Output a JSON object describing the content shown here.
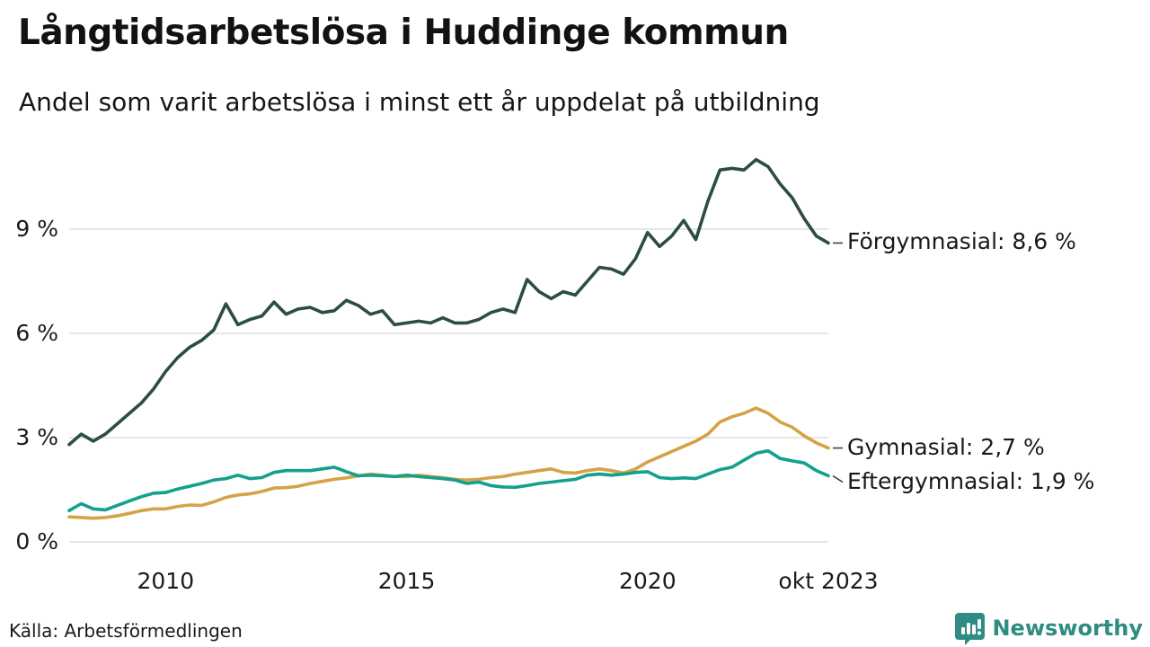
{
  "header": {
    "title": "Långtidsarbetslösa i Huddinge kommun",
    "subtitle": "Andel som varit arbetslösa i minst ett år uppdelat på utbildning"
  },
  "footer": {
    "source": "Källa: Arbetsförmedlingen",
    "brand": "Newsworthy",
    "brand_color": "#2e8c83"
  },
  "chart_data": {
    "type": "line",
    "title": "Långtidsarbetslösa i Huddinge kommun",
    "subtitle": "Andel som varit arbetslösa i minst ett år uppdelat på utbildning",
    "x_unit": "decimal_year_quarterly",
    "x_range_note": "jan 2008 till okt 2023",
    "grid": "horizontal",
    "legend_position": "right-end-labels",
    "ylim": [
      0,
      11.5
    ],
    "y_ticks": [
      {
        "value": 0,
        "label": "0 %"
      },
      {
        "value": 3,
        "label": "3 %"
      },
      {
        "value": 6,
        "label": "6 %"
      },
      {
        "value": 9,
        "label": "9 %"
      }
    ],
    "x_ticks": [
      {
        "value": 2010,
        "label": "2010"
      },
      {
        "value": 2015,
        "label": "2015"
      },
      {
        "value": 2020,
        "label": "2020"
      },
      {
        "value": 2023.75,
        "label": "okt 2023"
      }
    ],
    "x": [
      2008.0,
      2008.25,
      2008.5,
      2008.75,
      2009.0,
      2009.25,
      2009.5,
      2009.75,
      2010.0,
      2010.25,
      2010.5,
      2010.75,
      2011.0,
      2011.25,
      2011.5,
      2011.75,
      2012.0,
      2012.25,
      2012.5,
      2012.75,
      2013.0,
      2013.25,
      2013.5,
      2013.75,
      2014.0,
      2014.25,
      2014.5,
      2014.75,
      2015.0,
      2015.25,
      2015.5,
      2015.75,
      2016.0,
      2016.25,
      2016.5,
      2016.75,
      2017.0,
      2017.25,
      2017.5,
      2017.75,
      2018.0,
      2018.25,
      2018.5,
      2018.75,
      2019.0,
      2019.25,
      2019.5,
      2019.75,
      2020.0,
      2020.25,
      2020.5,
      2020.75,
      2021.0,
      2021.25,
      2021.5,
      2021.75,
      2022.0,
      2022.25,
      2022.5,
      2022.75,
      2023.0,
      2023.25,
      2023.5,
      2023.75
    ],
    "series": [
      {
        "name": "Förgymnasial",
        "end_label": "Förgymnasial: 8,6 %",
        "end_value_label": "8,6 %",
        "color": "#2d4c46",
        "values": [
          2.8,
          3.1,
          2.9,
          3.1,
          3.4,
          3.7,
          4.0,
          4.4,
          4.9,
          5.3,
          5.6,
          5.8,
          6.1,
          6.85,
          6.25,
          6.4,
          6.5,
          6.9,
          6.55,
          6.7,
          6.75,
          6.6,
          6.65,
          6.95,
          6.8,
          6.55,
          6.65,
          6.25,
          6.3,
          6.35,
          6.3,
          6.45,
          6.3,
          6.3,
          6.4,
          6.6,
          6.7,
          6.6,
          7.55,
          7.2,
          7.0,
          7.2,
          7.1,
          7.5,
          7.9,
          7.85,
          7.7,
          8.15,
          8.9,
          8.5,
          8.8,
          9.25,
          8.7,
          9.8,
          10.7,
          10.75,
          10.7,
          11.0,
          10.8,
          10.3,
          9.9,
          9.3,
          8.8,
          8.6
        ]
      },
      {
        "name": "Gymnasial",
        "end_label": "Gymnasial: 2,7 %",
        "end_value_label": "2,7 %",
        "color": "#d5a245",
        "values": [
          0.72,
          0.7,
          0.68,
          0.7,
          0.75,
          0.82,
          0.9,
          0.95,
          0.95,
          1.02,
          1.06,
          1.05,
          1.15,
          1.28,
          1.35,
          1.38,
          1.45,
          1.55,
          1.56,
          1.6,
          1.68,
          1.74,
          1.8,
          1.84,
          1.9,
          1.95,
          1.92,
          1.88,
          1.88,
          1.92,
          1.88,
          1.85,
          1.8,
          1.78,
          1.8,
          1.85,
          1.88,
          1.95,
          2.0,
          2.05,
          2.1,
          2.0,
          1.98,
          2.05,
          2.1,
          2.05,
          1.98,
          2.1,
          2.3,
          2.45,
          2.6,
          2.75,
          2.9,
          3.1,
          3.45,
          3.6,
          3.7,
          3.85,
          3.7,
          3.45,
          3.3,
          3.05,
          2.85,
          2.7
        ]
      },
      {
        "name": "Eftergymnasial",
        "end_label": "Eftergymnasial: 1,9 %",
        "end_value_label": "1,9 %",
        "color": "#13a08e",
        "values": [
          0.9,
          1.1,
          0.95,
          0.92,
          1.05,
          1.18,
          1.3,
          1.4,
          1.42,
          1.52,
          1.6,
          1.68,
          1.78,
          1.82,
          1.92,
          1.82,
          1.85,
          2.0,
          2.05,
          2.05,
          2.05,
          2.1,
          2.15,
          2.02,
          1.9,
          1.92,
          1.9,
          1.88,
          1.92,
          1.88,
          1.85,
          1.82,
          1.78,
          1.68,
          1.72,
          1.62,
          1.58,
          1.57,
          1.62,
          1.68,
          1.72,
          1.76,
          1.8,
          1.92,
          1.95,
          1.92,
          1.95,
          2.0,
          2.02,
          1.85,
          1.82,
          1.84,
          1.82,
          1.95,
          2.08,
          2.15,
          2.35,
          2.55,
          2.62,
          2.4,
          2.33,
          2.27,
          2.05,
          1.9
        ]
      }
    ],
    "gridline_color": "#e6e6e9"
  }
}
